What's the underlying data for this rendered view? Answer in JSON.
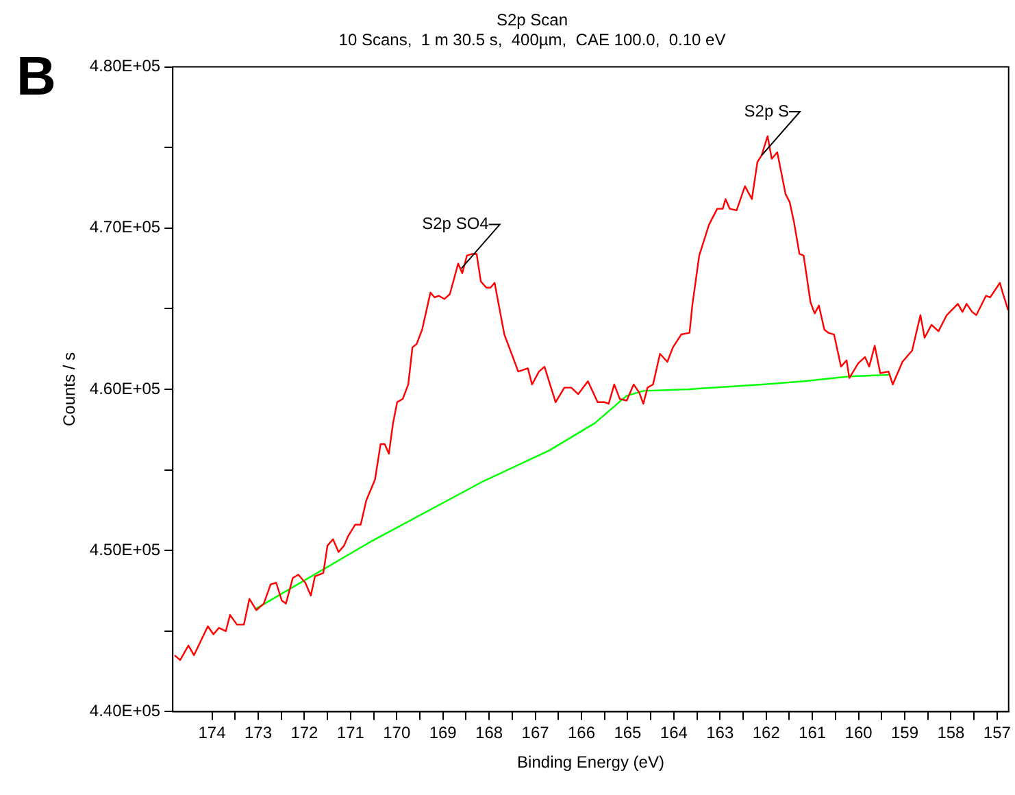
{
  "chart_data": {
    "type": "line",
    "title": "S2p Scan",
    "subtitle": "10 Scans,  1 m 30.5 s,  400µm,  CAE 100.0,  0.10 eV",
    "xlabel": "Binding Energy (eV)",
    "ylabel": "Counts / s",
    "annotations": [
      "B",
      {
        "text": "S2p SO4",
        "x": 168.6,
        "y": 467500
      },
      {
        "text": "S2p S",
        "x": 162.1,
        "y": 474500
      }
    ],
    "xlim": [
      174.85,
      156.75
    ],
    "ylim": [
      440000,
      480000
    ],
    "xticks": [
      174,
      {
        "value": 173.5,
        "label": null
      },
      173,
      {
        "value": 172.5,
        "label": null
      },
      172,
      {
        "value": 171.5,
        "label": null
      },
      171,
      {
        "value": 170.5,
        "label": null
      },
      170,
      {
        "value": 169.5,
        "label": null
      },
      169,
      {
        "value": 168.5,
        "label": null
      },
      168,
      {
        "value": 167.5,
        "label": null
      },
      167,
      {
        "value": 166.5,
        "label": null
      },
      166,
      {
        "value": 165.5,
        "label": null
      },
      165,
      {
        "value": 164.5,
        "label": null
      },
      164,
      {
        "value": 163.5,
        "label": null
      },
      163,
      {
        "value": 162.5,
        "label": null
      },
      162,
      {
        "value": 161.5,
        "label": null
      },
      161,
      {
        "value": 160.5,
        "label": null
      },
      160,
      {
        "value": 159.5,
        "label": null
      },
      159,
      {
        "value": 158.5,
        "label": null
      },
      158,
      {
        "value": 157.5,
        "label": null
      },
      157
    ],
    "yticks": [
      {
        "value": 440000,
        "label": "4.40E+05"
      },
      {
        "value": 445000,
        "label": null
      },
      {
        "value": 450000,
        "label": "4.50E+05"
      },
      {
        "value": 455000,
        "label": null
      },
      {
        "value": 460000,
        "label": "4.60E+05"
      },
      {
        "value": 465000,
        "label": null
      },
      {
        "value": 470000,
        "label": "4.70E+05"
      },
      {
        "value": 475000,
        "label": null
      },
      {
        "value": 480000,
        "label": "4.80E+05"
      }
    ],
    "marker": "none",
    "line_style": "solid",
    "series": [
      {
        "color": "#ff0000",
        "x": [
          174.81,
          174.69,
          174.51,
          174.39,
          174.09,
          173.97,
          173.85,
          173.7,
          173.61,
          173.46,
          173.31,
          173.19,
          173.04,
          172.88,
          172.73,
          172.61,
          172.49,
          172.4,
          172.25,
          172.13,
          171.98,
          171.86,
          171.77,
          171.59,
          171.5,
          171.38,
          171.26,
          171.14,
          171.05,
          170.9,
          170.78,
          170.66,
          170.47,
          170.35,
          170.26,
          170.17,
          170.08,
          169.99,
          169.87,
          169.75,
          169.66,
          169.57,
          169.45,
          169.27,
          169.18,
          169.09,
          168.97,
          168.85,
          168.67,
          168.58,
          168.48,
          168.36,
          168.27,
          168.18,
          168.06,
          167.97,
          167.88,
          167.67,
          167.46,
          167.37,
          167.16,
          167.07,
          166.92,
          166.8,
          166.56,
          166.37,
          166.22,
          166.07,
          165.86,
          165.65,
          165.5,
          165.41,
          165.29,
          165.17,
          165.02,
          164.87,
          164.75,
          164.66,
          164.57,
          164.45,
          164.3,
          164.14,
          164.02,
          163.84,
          163.66,
          163.6,
          163.45,
          163.24,
          163.06,
          162.94,
          162.88,
          162.79,
          162.64,
          162.46,
          162.31,
          162.19,
          162.1,
          161.97,
          161.88,
          161.76,
          161.58,
          161.49,
          161.4,
          161.28,
          161.19,
          161.04,
          160.95,
          160.86,
          160.74,
          160.65,
          160.53,
          160.38,
          160.26,
          160.2,
          160.01,
          159.86,
          159.77,
          159.65,
          159.53,
          159.35,
          159.26,
          159.05,
          158.84,
          158.66,
          158.57,
          158.42,
          158.27,
          158.09,
          157.85,
          157.75,
          157.66,
          157.54,
          157.45,
          157.24,
          157.15,
          156.94,
          156.88,
          156.76
        ],
        "values": [
          443500,
          443200,
          444100,
          443500,
          445300,
          444800,
          445200,
          445000,
          446000,
          445400,
          445400,
          447000,
          446300,
          446700,
          447900,
          448000,
          446900,
          446700,
          448300,
          448500,
          448000,
          447200,
          448400,
          448600,
          450300,
          450700,
          449900,
          450300,
          450900,
          451600,
          451600,
          453100,
          454400,
          456600,
          456600,
          456000,
          457900,
          459200,
          459400,
          460300,
          462600,
          462800,
          463700,
          466000,
          465700,
          465800,
          465600,
          465900,
          467800,
          467200,
          468300,
          468400,
          468400,
          466700,
          466300,
          466300,
          466600,
          463400,
          461800,
          461100,
          461300,
          460300,
          461100,
          461400,
          459200,
          460100,
          460100,
          459700,
          460500,
          459200,
          459200,
          459100,
          460300,
          459400,
          459300,
          460300,
          459800,
          459100,
          460100,
          460300,
          462200,
          461700,
          462600,
          463400,
          463500,
          465200,
          468300,
          470200,
          471200,
          471200,
          471800,
          471200,
          471100,
          472600,
          471800,
          474100,
          474500,
          475700,
          474300,
          474700,
          472100,
          471600,
          470400,
          468400,
          468300,
          465400,
          464700,
          465200,
          463700,
          463500,
          463400,
          461400,
          461800,
          460700,
          461600,
          462000,
          461400,
          462700,
          461000,
          461100,
          460300,
          461700,
          462400,
          464600,
          463200,
          464000,
          463600,
          464600,
          465300,
          464800,
          465300,
          464800,
          464600,
          465800,
          465700,
          466600,
          466000,
          464900
        ]
      },
      {
        "color": "#00ff00",
        "x": [
          173.04,
          170.53,
          168.12,
          166.7,
          165.71,
          165.02,
          164.66,
          163.68,
          162.08,
          161.18,
          160.2,
          159.31
        ],
        "values": [
          446400,
          450600,
          454300,
          456200,
          457900,
          459600,
          459900,
          460000,
          460300,
          460500,
          460800,
          460900
        ]
      }
    ]
  }
}
